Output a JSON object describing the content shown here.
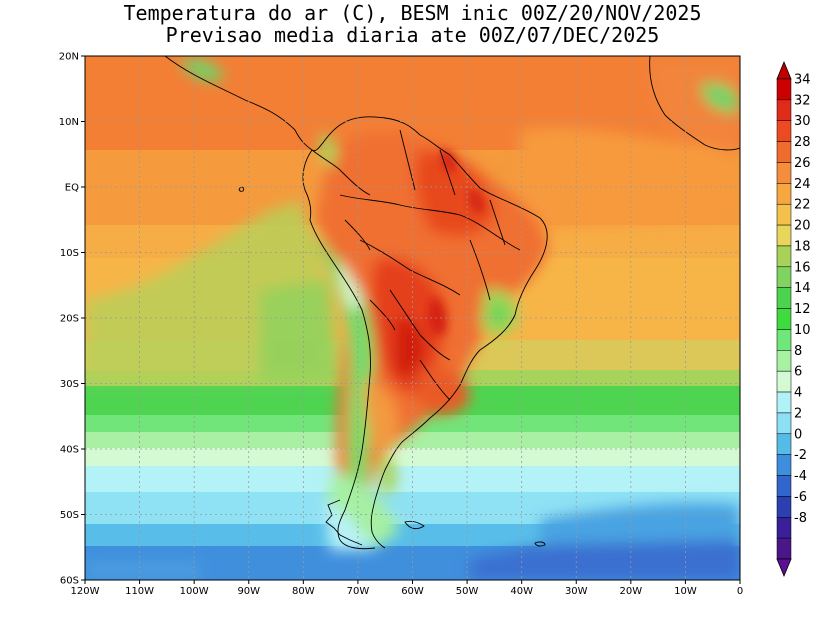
{
  "title": {
    "line1": "Temperatura do ar (C), BESM inic 00Z/20/NOV/2025",
    "line2": "Previsao media diaria ate 00Z/07/DEC/2025"
  },
  "axes": {
    "lat_labels": [
      "20N",
      "10N",
      "EQ",
      "10S",
      "20S",
      "30S",
      "40S",
      "50S",
      "60S"
    ],
    "lon_labels": [
      "120W",
      "110W",
      "100W",
      "90W",
      "80W",
      "70W",
      "60W",
      "50W",
      "40W",
      "30W",
      "20W",
      "10W",
      "0"
    ],
    "lat_values": [
      20,
      10,
      0,
      -10,
      -20,
      -30,
      -40,
      -50,
      -60
    ],
    "lon_values": [
      -120,
      -110,
      -100,
      -90,
      -80,
      -70,
      -60,
      -50,
      -40,
      -30,
      -20,
      -10,
      0
    ]
  },
  "colorbar": {
    "labels": [
      "34",
      "32",
      "30",
      "28",
      "26",
      "24",
      "22",
      "20",
      "18",
      "16",
      "14",
      "12",
      "10",
      "8",
      "6",
      "4",
      "2",
      "0",
      "-2",
      "-4",
      "-6",
      "-8"
    ],
    "colors": [
      "#cc0000",
      "#e02a1a",
      "#ee4a22",
      "#f06c2c",
      "#f58d3c",
      "#f7a640",
      "#f4c24c",
      "#e8d65a",
      "#a9d25a",
      "#7fd461",
      "#4cd34f",
      "#3fdc3f",
      "#6ee878",
      "#a6f2a2",
      "#d3fad2",
      "#b0f2f8",
      "#8be0f4",
      "#55bce8",
      "#3e8ede",
      "#3266cc",
      "#2a40b0",
      "#3a2098",
      "#4a168a"
    ],
    "arrow_top_color": "#c00000",
    "arrow_bottom_color": "#5a1090"
  }
}
